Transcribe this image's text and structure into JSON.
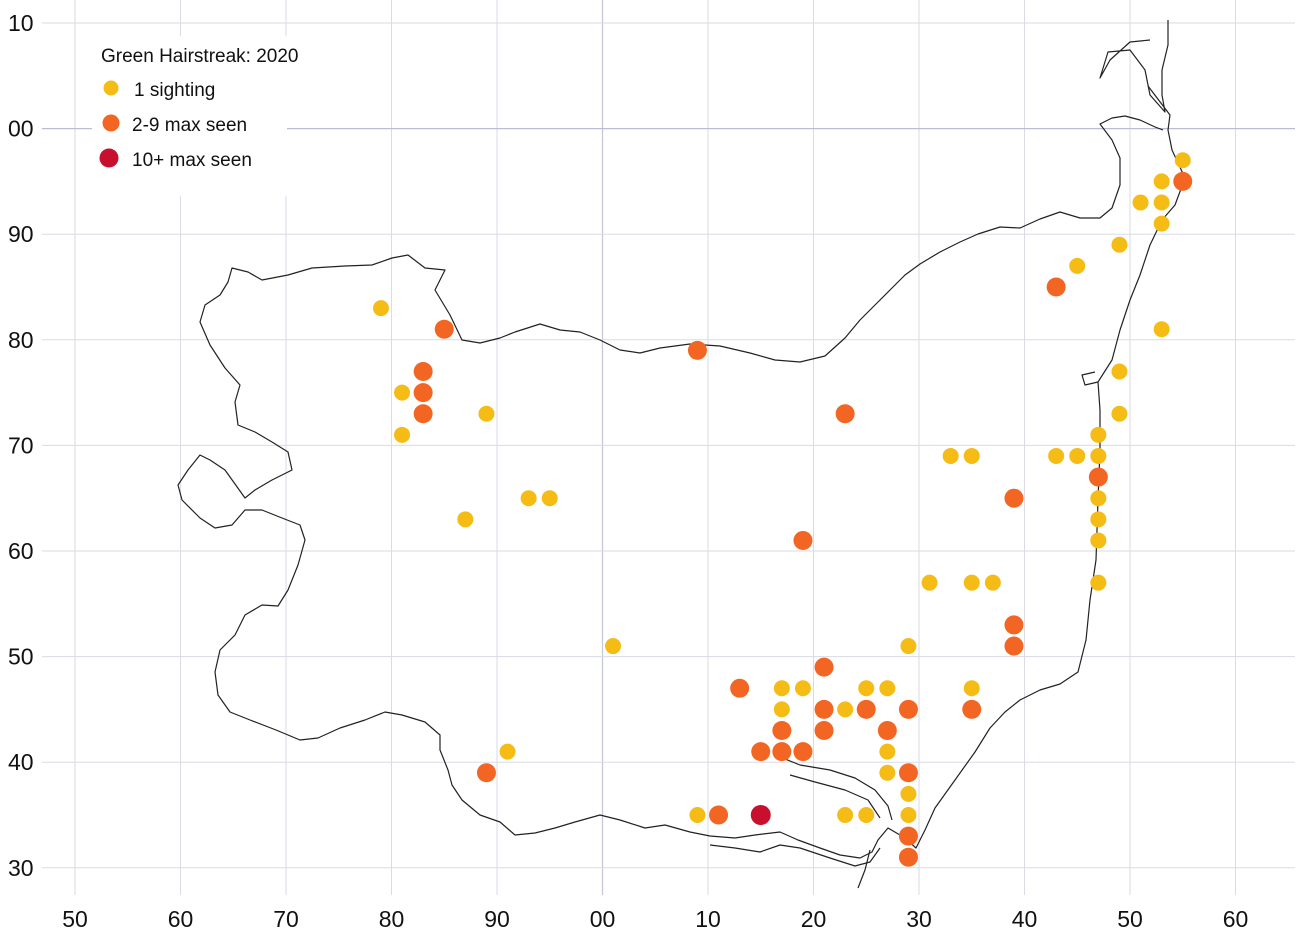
{
  "chart_data": {
    "type": "scatter",
    "title": "Green Hairstreak:  2020",
    "legend": {
      "placement": "top-left",
      "entries": [
        {
          "label": "1 sighting",
          "color": "#f5bc16"
        },
        {
          "label": "2-9 max seen",
          "color": "#f26522"
        },
        {
          "label": "10+ max seen",
          "color": "#c8102e"
        }
      ]
    },
    "x_ticks": [
      "50",
      "60",
      "70",
      "80",
      "90",
      "00",
      "10",
      "20",
      "30",
      "40",
      "50",
      "60"
    ],
    "y_ticks": [
      "10",
      "00",
      "90",
      "80",
      "70",
      "60",
      "50",
      "40",
      "30"
    ],
    "x_axis_values": [
      50,
      60,
      70,
      80,
      90,
      100,
      110,
      120,
      130,
      140,
      150,
      160
    ],
    "y_axis_values": [
      110,
      100,
      90,
      80,
      70,
      60,
      50,
      40,
      30
    ],
    "xlim": [
      48,
      164.5
    ],
    "ylim": [
      28,
      112
    ],
    "grid": true,
    "series": [
      {
        "name": "1 sighting",
        "color": "#f5bc16",
        "points": [
          [
            79,
            83
          ],
          [
            81,
            75
          ],
          [
            81,
            71
          ],
          [
            87,
            63
          ],
          [
            89,
            73
          ],
          [
            93,
            65
          ],
          [
            95,
            65
          ],
          [
            91,
            41
          ],
          [
            101,
            51
          ],
          [
            109,
            35
          ],
          [
            117,
            47
          ],
          [
            117,
            45
          ],
          [
            119,
            47
          ],
          [
            123,
            45
          ],
          [
            123,
            35
          ],
          [
            125,
            47
          ],
          [
            125,
            35
          ],
          [
            127,
            47
          ],
          [
            127,
            41
          ],
          [
            127,
            39
          ],
          [
            129,
            51
          ],
          [
            129,
            37
          ],
          [
            129,
            35
          ],
          [
            131,
            57
          ],
          [
            133,
            69
          ],
          [
            135,
            69
          ],
          [
            135,
            57
          ],
          [
            135,
            47
          ],
          [
            137,
            57
          ],
          [
            143,
            69
          ],
          [
            145,
            69
          ],
          [
            145,
            87
          ],
          [
            147,
            71
          ],
          [
            147,
            69
          ],
          [
            147,
            65
          ],
          [
            147,
            63
          ],
          [
            147,
            61
          ],
          [
            147,
            57
          ],
          [
            149,
            89
          ],
          [
            149,
            77
          ],
          [
            149,
            73
          ],
          [
            151,
            93
          ],
          [
            153,
            95
          ],
          [
            153,
            93
          ],
          [
            153,
            91
          ],
          [
            153,
            81
          ],
          [
            155,
            97
          ]
        ]
      },
      {
        "name": "2-9 max seen",
        "color": "#f26522",
        "points": [
          [
            83,
            77
          ],
          [
            83,
            75
          ],
          [
            83,
            73
          ],
          [
            85,
            81
          ],
          [
            89,
            39
          ],
          [
            109,
            79
          ],
          [
            111,
            35
          ],
          [
            113,
            47
          ],
          [
            115,
            41
          ],
          [
            117,
            43
          ],
          [
            117,
            41
          ],
          [
            119,
            41
          ],
          [
            119,
            61
          ],
          [
            121,
            49
          ],
          [
            121,
            45
          ],
          [
            121,
            43
          ],
          [
            123,
            73
          ],
          [
            125,
            45
          ],
          [
            127,
            43
          ],
          [
            129,
            45
          ],
          [
            129,
            39
          ],
          [
            129,
            33
          ],
          [
            129,
            31
          ],
          [
            135,
            45
          ],
          [
            139,
            65
          ],
          [
            139,
            53
          ],
          [
            139,
            51
          ],
          [
            143,
            85
          ],
          [
            147,
            67
          ],
          [
            155,
            95
          ]
        ]
      },
      {
        "name": "10+ max seen",
        "color": "#c8102e",
        "points": [
          [
            115,
            35
          ]
        ]
      }
    ]
  }
}
